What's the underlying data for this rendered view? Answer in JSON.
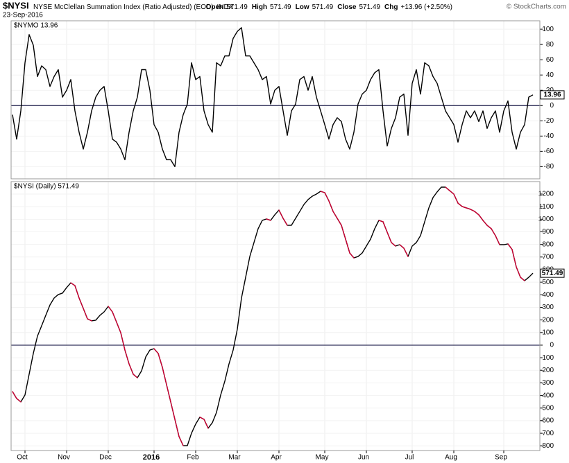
{
  "header": {
    "symbol": "$NYSI",
    "title": "NYSE McClellan Summation Index (Ratio Adjusted) (EOD)",
    "exchange": "INDX",
    "date": "23-Sep-2016",
    "quote": [
      {
        "label": "Open",
        "value": "571.49"
      },
      {
        "label": "High",
        "value": "571.49"
      },
      {
        "label": "Low",
        "value": "571.49"
      },
      {
        "label": "Close",
        "value": "571.49"
      },
      {
        "label": "Chg",
        "value": "+13.96 (+2.50%)"
      }
    ],
    "credit": "© StockCharts.com"
  },
  "chart_data": [
    {
      "type": "line",
      "label": "$NYMO 13.96",
      "ylim": [
        -96,
        111
      ],
      "yticks": [
        -80,
        -60,
        -40,
        -20,
        0,
        20,
        40,
        60,
        80,
        100
      ],
      "grid": true,
      "reference_line": 0,
      "series": [
        {
          "name": "$NYMO",
          "color": "#000000",
          "values": [
            -12,
            -44,
            -7,
            56,
            93,
            79,
            38,
            52,
            47,
            25,
            38,
            47,
            11,
            20,
            34,
            -7,
            -35,
            -57,
            -35,
            -7,
            11,
            20,
            25,
            -7,
            -44,
            -48,
            -57,
            -71,
            -35,
            -7,
            11,
            47,
            47,
            20,
            -25,
            -35,
            -57,
            -71,
            -71,
            -80,
            -35,
            -12,
            2,
            56,
            34,
            38,
            -7,
            -25,
            -35,
            56,
            52,
            65,
            65,
            88,
            97,
            102,
            65,
            65,
            56,
            47,
            34,
            38,
            2,
            20,
            25,
            -7,
            -39,
            -7,
            2,
            34,
            38,
            20,
            38,
            11,
            -7,
            -25,
            -44,
            -25,
            -16,
            -21,
            -44,
            -57,
            -35,
            2,
            15,
            20,
            34,
            43,
            47,
            -7,
            -53,
            -30,
            -16,
            11,
            15,
            -39,
            29,
            47,
            15,
            56,
            52,
            38,
            29,
            11,
            -7,
            -16,
            -25,
            -48,
            -25,
            -7,
            -16,
            -7,
            -21,
            -7,
            -30,
            -16,
            -7,
            -35,
            -7,
            6,
            -35,
            -57,
            -35,
            -25,
            11,
            13.96
          ]
        }
      ]
    },
    {
      "type": "line",
      "label": "$NYSI (Daily) 571.49",
      "ylim": [
        -837,
        1299
      ],
      "yticks": [
        -800,
        -700,
        -600,
        -500,
        -400,
        -300,
        -200,
        -100,
        0,
        100,
        200,
        300,
        400,
        500,
        600,
        700,
        800,
        900,
        1000,
        1100,
        1200
      ],
      "grid": true,
      "reference_line": 0,
      "categories": [
        null,
        null,
        null,
        "Oct",
        null,
        null,
        null,
        null,
        null,
        null,
        null,
        null,
        null,
        "Nov",
        null,
        null,
        null,
        null,
        null,
        null,
        null,
        null,
        null,
        "Dec",
        null,
        null,
        null,
        null,
        null,
        null,
        null,
        null,
        null,
        null,
        "2016",
        null,
        null,
        null,
        null,
        null,
        null,
        null,
        null,
        null,
        "Feb",
        null,
        null,
        null,
        null,
        null,
        null,
        null,
        null,
        null,
        "Mar",
        null,
        null,
        null,
        null,
        null,
        null,
        null,
        null,
        null,
        "Apr",
        null,
        null,
        null,
        null,
        null,
        null,
        null,
        null,
        null,
        null,
        "May",
        null,
        null,
        null,
        null,
        null,
        null,
        null,
        null,
        null,
        "Jun",
        null,
        null,
        null,
        null,
        null,
        null,
        null,
        null,
        null,
        null,
        "Jul",
        null,
        null,
        null,
        null,
        null,
        null,
        null,
        null,
        null,
        "Aug",
        null,
        null,
        null,
        null,
        null,
        null,
        null,
        null,
        null,
        null,
        null,
        "Sep",
        null,
        null,
        null,
        null,
        null,
        null,
        null
      ],
      "series": [
        {
          "name": "$NYSI",
          "color": "#000000",
          "down_color": "#cc0033",
          "values": [
            -369,
            -424,
            -451,
            -396,
            -231,
            -66,
            72,
            154,
            237,
            319,
            374,
            402,
            413,
            457,
            495,
            473,
            374,
            292,
            209,
            193,
            198,
            237,
            264,
            308,
            264,
            182,
            99,
            -39,
            -149,
            -231,
            -259,
            -204,
            -94,
            -39,
            -28,
            -66,
            -176,
            -314,
            -451,
            -589,
            -726,
            -798,
            -798,
            -699,
            -627,
            -572,
            -589,
            -660,
            -616,
            -534,
            -396,
            -286,
            -149,
            -39,
            127,
            374,
            539,
            704,
            815,
            925,
            991,
            1002,
            991,
            1035,
            1073,
            1007,
            952,
            952,
            1007,
            1062,
            1117,
            1156,
            1183,
            1200,
            1222,
            1211,
            1145,
            1062,
            1007,
            952,
            842,
            732,
            693,
            704,
            732,
            787,
            842,
            925,
            991,
            980,
            897,
            815,
            787,
            798,
            770,
            704,
            787,
            815,
            870,
            980,
            1090,
            1172,
            1217,
            1255,
            1255,
            1227,
            1200,
            1128,
            1101,
            1090,
            1079,
            1062,
            1035,
            991,
            952,
            925,
            870,
            798,
            798,
            804,
            760,
            622,
            539,
            512,
            539,
            571.49
          ]
        }
      ]
    }
  ]
}
